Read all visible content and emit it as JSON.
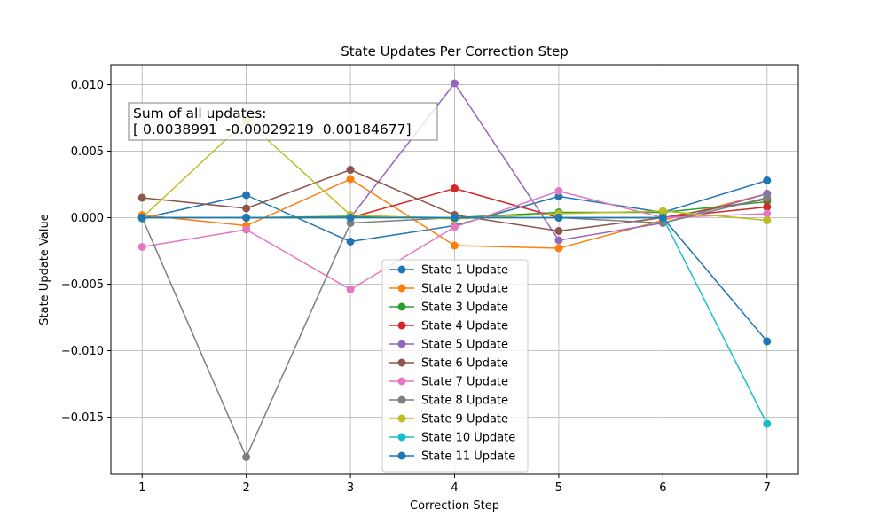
{
  "chart_data": {
    "type": "line",
    "title": "State Updates Per Correction Step",
    "xlabel": "Correction Step",
    "ylabel": "State Update Value",
    "x": [
      1,
      2,
      3,
      4,
      5,
      6,
      7
    ],
    "xlim": [
      0.7,
      7.3
    ],
    "ylim": [
      -0.0193,
      0.0115
    ],
    "xticks": [
      1,
      2,
      3,
      4,
      5,
      6,
      7
    ],
    "yticks": [
      -0.015,
      -0.01,
      -0.005,
      0.0,
      0.005,
      0.01
    ],
    "ytick_labels": [
      "−0.015",
      "−0.010",
      "−0.005",
      "0.000",
      "0.005",
      "0.010"
    ],
    "grid": true,
    "legend_position": "lower center",
    "annotation": {
      "line1": "Sum of all updates:",
      "line2": "[ 0.0038991  -0.00029219  0.00184677]"
    },
    "series": [
      {
        "name": "State 1 Update",
        "color": "#1f77b4",
        "values": [
          -5e-05,
          0.0017,
          -0.0018,
          -0.0006,
          0.0016,
          0.0004,
          0.0028
        ]
      },
      {
        "name": "State 2 Update",
        "color": "#ff7f0e",
        "values": [
          0.0002,
          -0.0006,
          0.0029,
          -0.0021,
          -0.0023,
          -0.0002,
          0.0018
        ]
      },
      {
        "name": "State 3 Update",
        "color": "#2ca02c",
        "values": [
          0.0,
          0.0,
          0.0001,
          0.0,
          0.0004,
          0.0004,
          0.0012
        ]
      },
      {
        "name": "State 4 Update",
        "color": "#d62728",
        "values": [
          0.0,
          0.0,
          0.0,
          0.0022,
          0.0,
          0.0,
          0.0008
        ]
      },
      {
        "name": "State 5 Update",
        "color": "#9467bd",
        "values": [
          0.0,
          0.0,
          0.0,
          0.0101,
          -0.0017,
          -0.0004,
          0.0018
        ]
      },
      {
        "name": "State 6 Update",
        "color": "#8c564b",
        "values": [
          0.0015,
          0.0007,
          0.0036,
          0.0002,
          -0.001,
          0.0,
          0.0014
        ]
      },
      {
        "name": "State 7 Update",
        "color": "#e377c2",
        "values": [
          -0.0022,
          -0.0009,
          -0.0054,
          -0.0007,
          0.002,
          0.0,
          0.0003
        ]
      },
      {
        "name": "State 8 Update",
        "color": "#7f7f7f",
        "values": [
          0.0,
          -0.018,
          -0.0004,
          0.0,
          0.0,
          -0.0004,
          0.0015
        ]
      },
      {
        "name": "State 9 Update",
        "color": "#bcbd22",
        "values": [
          0.0,
          0.0073,
          0.0002,
          -0.0001,
          0.0003,
          0.0005,
          -0.0002
        ]
      },
      {
        "name": "State 10 Update",
        "color": "#17becf",
        "values": [
          0.0,
          0.0,
          0.0,
          0.0,
          0.0,
          0.0,
          -0.0155
        ]
      },
      {
        "name": "State 11 Update",
        "color": "#1f77b4",
        "values": [
          0.0,
          0.0,
          0.0,
          0.0,
          0.0,
          0.0,
          -0.0093
        ]
      }
    ]
  }
}
